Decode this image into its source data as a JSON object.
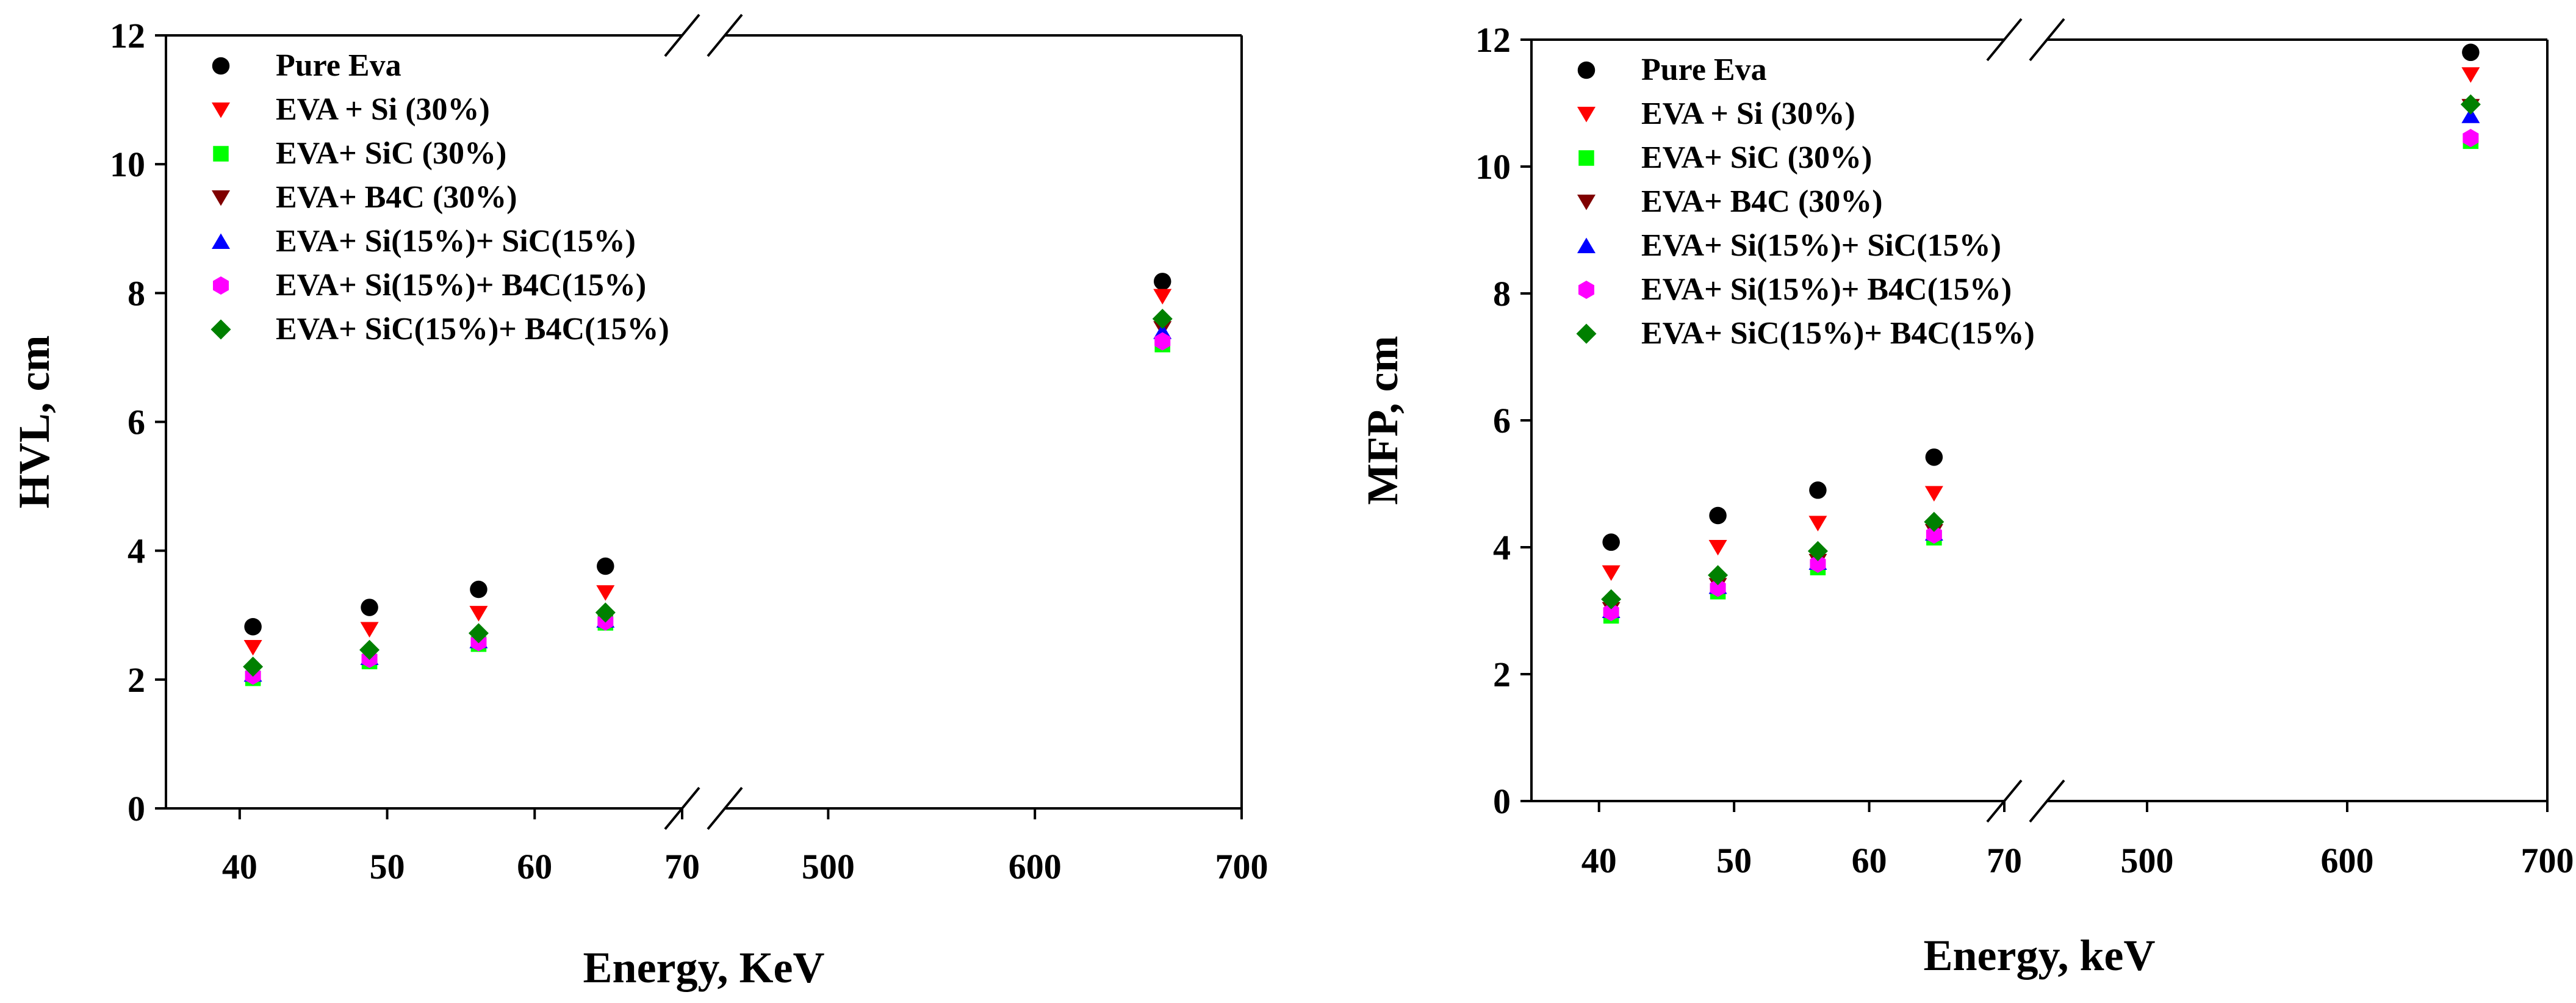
{
  "figure_title": "",
  "chart_data": [
    {
      "type": "scatter",
      "id": "hvl",
      "title": "",
      "xlabel": "Energy, KeV",
      "ylabel": "HVL, cm",
      "x_break": {
        "left_range": [
          35,
          70
        ],
        "right_range": [
          450,
          700
        ]
      },
      "ylim": [
        0,
        12
      ],
      "xticks_left": [
        40,
        50,
        60,
        70
      ],
      "xticks_right": [
        500,
        600,
        700
      ],
      "yticks": [
        0,
        2,
        4,
        6,
        8,
        10,
        12
      ],
      "legend_position": "top-left",
      "x": [
        40.9,
        48.8,
        56.2,
        64.8,
        661.7
      ],
      "series": [
        {
          "name": "Pure Eva",
          "marker": "circle",
          "color": "#000000",
          "values": [
            2.82,
            3.12,
            3.4,
            3.76,
            8.18
          ]
        },
        {
          "name": "EVA + Si (30%)",
          "marker": "triangle-down",
          "color": "#ff0000",
          "values": [
            2.5,
            2.78,
            3.03,
            3.35,
            7.95
          ]
        },
        {
          "name": "EVA+ SiC (30%)",
          "marker": "square",
          "color": "#00ff00",
          "values": [
            2.02,
            2.28,
            2.55,
            2.88,
            7.2
          ]
        },
        {
          "name": "EVA+ B4C (30%)",
          "marker": "triangle-down",
          "color": "#800000",
          "values": [
            2.1,
            2.36,
            2.62,
            2.93,
            7.45
          ]
        },
        {
          "name": "EVA+ Si(15%)+ SiC(15%)",
          "marker": "triangle-up",
          "color": "#0000ff",
          "values": [
            2.08,
            2.34,
            2.6,
            2.92,
            7.4
          ]
        },
        {
          "name": "EVA+ Si(15%)+ B4C(15%)",
          "marker": "hexagon",
          "color": "#ff00ff",
          "values": [
            2.06,
            2.32,
            2.58,
            2.9,
            7.25
          ]
        },
        {
          "name": "EVA+ SiC(15%)+ B4C(15%)",
          "marker": "diamond",
          "color": "#008000",
          "values": [
            2.2,
            2.46,
            2.72,
            3.04,
            7.6
          ]
        }
      ]
    },
    {
      "type": "scatter",
      "id": "mfp",
      "title": "",
      "xlabel": "Energy, keV",
      "ylabel": "MFP, cm",
      "x_break": {
        "left_range": [
          35,
          70
        ],
        "right_range": [
          450,
          700
        ]
      },
      "ylim": [
        0,
        12
      ],
      "xticks_left": [
        40,
        50,
        60,
        70
      ],
      "xticks_right": [
        500,
        600,
        700
      ],
      "yticks": [
        0,
        2,
        4,
        6,
        8,
        10,
        12
      ],
      "legend_position": "top-left",
      "x": [
        40.9,
        48.8,
        56.2,
        64.8,
        661.7
      ],
      "series": [
        {
          "name": "Pure Eva",
          "marker": "circle",
          "color": "#000000",
          "values": [
            4.08,
            4.5,
            4.9,
            5.42,
            11.8
          ]
        },
        {
          "name": "EVA + Si (30%)",
          "marker": "triangle-down",
          "color": "#ff0000",
          "values": [
            3.6,
            4.0,
            4.38,
            4.85,
            11.45
          ]
        },
        {
          "name": "EVA+ SiC (30%)",
          "marker": "square",
          "color": "#00ff00",
          "values": [
            2.92,
            3.3,
            3.68,
            4.15,
            10.4
          ]
        },
        {
          "name": "EVA+ B4C (30%)",
          "marker": "triangle-down",
          "color": "#800000",
          "values": [
            3.02,
            3.4,
            3.78,
            4.25,
            10.95
          ]
        },
        {
          "name": "EVA+ Si(15%)+ SiC(15%)",
          "marker": "triangle-up",
          "color": "#0000ff",
          "values": [
            3.0,
            3.38,
            3.76,
            4.22,
            10.8
          ]
        },
        {
          "name": "EVA+ Si(15%)+ B4C(15%)",
          "marker": "hexagon",
          "color": "#ff00ff",
          "values": [
            2.98,
            3.36,
            3.74,
            4.2,
            10.45
          ]
        },
        {
          "name": "EVA+ SiC(15%)+ B4C(15%)",
          "marker": "diamond",
          "color": "#008000",
          "values": [
            3.18,
            3.56,
            3.94,
            4.4,
            10.98
          ]
        }
      ]
    }
  ]
}
